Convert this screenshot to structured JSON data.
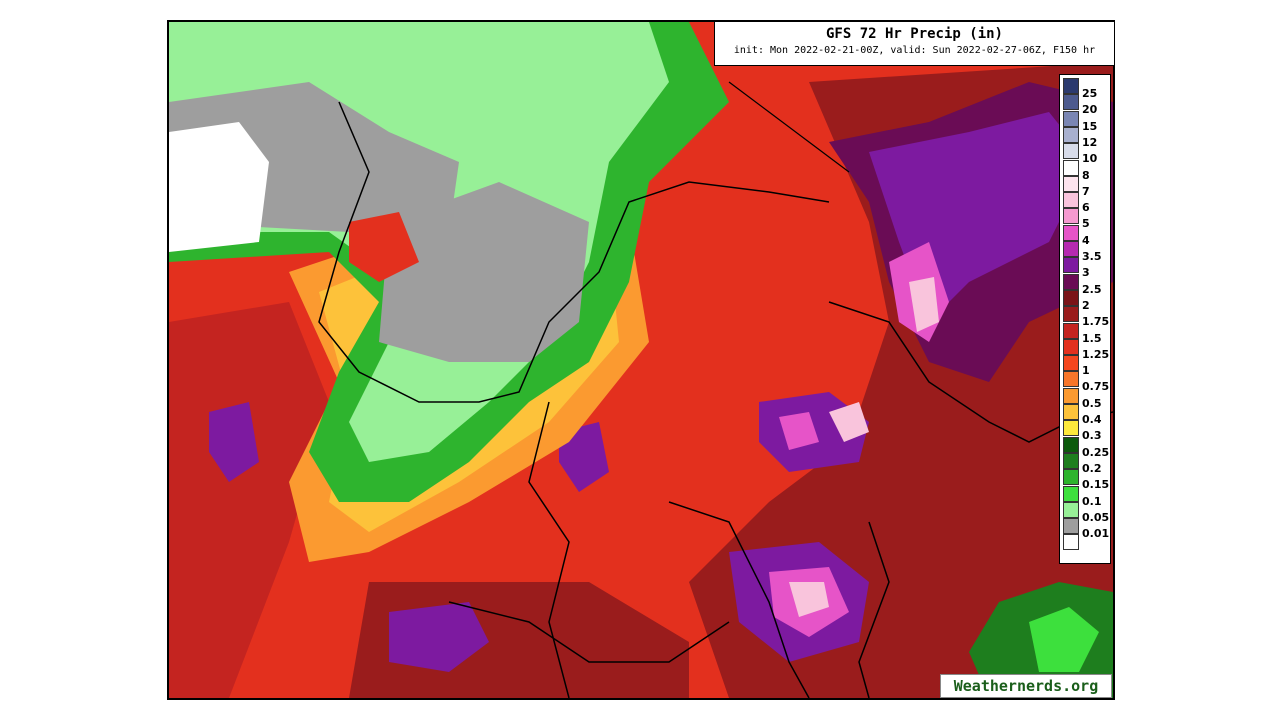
{
  "map": {
    "title": "GFS 72 Hr Precip (in)",
    "subtitle": "init: Mon 2022-02-21-00Z, valid: Sun 2022-02-27-06Z, F150 hr",
    "watermark": "Weathernerds.org",
    "legend": [
      {
        "label": "25",
        "color": "#2b3a6e"
      },
      {
        "label": "20",
        "color": "#4c5a8e"
      },
      {
        "label": "15",
        "color": "#7a86b4"
      },
      {
        "label": "12",
        "color": "#a8b0cf"
      },
      {
        "label": "10",
        "color": "#d8dcea"
      },
      {
        "label": "8",
        "color": "#ffffff"
      },
      {
        "label": "7",
        "color": "#fde4ee"
      },
      {
        "label": "6",
        "color": "#f9c4dc"
      },
      {
        "label": "5",
        "color": "#f59ad0"
      },
      {
        "label": "4",
        "color": "#e654c8"
      },
      {
        "label": "3.5",
        "color": "#b52ab0"
      },
      {
        "label": "3",
        "color": "#7d1aa0"
      },
      {
        "label": "2.5",
        "color": "#6a0c55"
      },
      {
        "label": "2",
        "color": "#7a1418"
      },
      {
        "label": "1.75",
        "color": "#9a1c1c"
      },
      {
        "label": "1.5",
        "color": "#c42420"
      },
      {
        "label": "1.25",
        "color": "#e3301e"
      },
      {
        "label": "1",
        "color": "#f4461e"
      },
      {
        "label": "0.75",
        "color": "#f7762a"
      },
      {
        "label": "0.5",
        "color": "#fb9a30"
      },
      {
        "label": "0.4",
        "color": "#fdc23a"
      },
      {
        "label": "0.3",
        "color": "#fde93c"
      },
      {
        "label": "0.25",
        "color": "#0c5a0c"
      },
      {
        "label": "0.2",
        "color": "#1e7e1e"
      },
      {
        "label": "0.15",
        "color": "#2eb42e"
      },
      {
        "label": "0.1",
        "color": "#3de03d"
      },
      {
        "label": "0.05",
        "color": "#97f097"
      },
      {
        "label": "0.01",
        "color": "#9e9e9e"
      },
      {
        "label": "",
        "color": "#ffffff"
      }
    ]
  }
}
